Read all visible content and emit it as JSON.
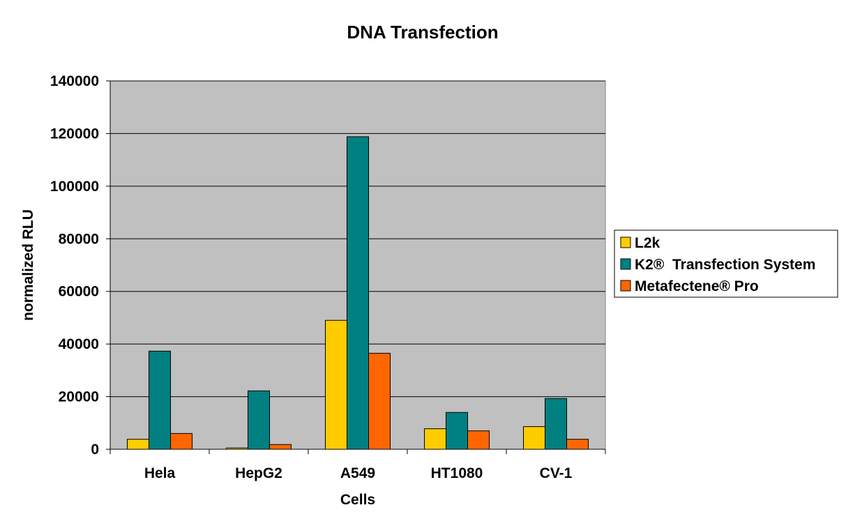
{
  "chart_data": {
    "type": "bar",
    "title": "DNA Transfection",
    "xlabel": "Cells",
    "ylabel": "normalized RLU",
    "categories": [
      "Hela",
      "HepG2",
      "A549",
      "HT1080",
      "CV-1"
    ],
    "series": [
      {
        "name": "L2k",
        "color": "#FFCC00",
        "values": [
          3800,
          500,
          49000,
          7800,
          8600
        ]
      },
      {
        "name": "K2®  Transfection System",
        "color": "#008080",
        "values": [
          37300,
          22200,
          118800,
          14000,
          19300
        ]
      },
      {
        "name": "Metafectene® Pro",
        "color": "#FF6600",
        "values": [
          6000,
          1800,
          36500,
          7000,
          3800
        ]
      }
    ],
    "ylim": [
      0,
      140000
    ],
    "yticks": [
      "0",
      "20000",
      "40000",
      "60000",
      "80000",
      "100000",
      "120000",
      "140000"
    ],
    "grid": true,
    "plot_background": "#C0C0C0",
    "legend_position": "right"
  }
}
